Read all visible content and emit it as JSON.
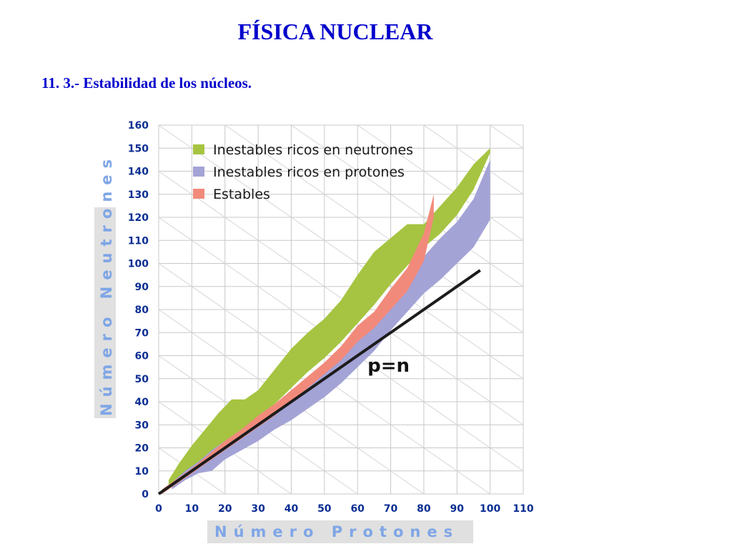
{
  "slide": {
    "title": "FÍSICA NUCLEAR",
    "subtitle": "11. 3.- Estabilidad de los núcleos."
  },
  "chart_data": {
    "type": "area",
    "xlabel": "Número Protones",
    "ylabel": "Número Neutrones",
    "xlim": [
      0,
      110
    ],
    "ylim": [
      0,
      160
    ],
    "xticks": [
      "0",
      "10",
      "20",
      "30",
      "40",
      "50",
      "60",
      "70",
      "80",
      "90",
      "100",
      "110"
    ],
    "yticks": [
      "0",
      "10",
      "20",
      "30",
      "40",
      "50",
      "60",
      "70",
      "80",
      "90",
      "100",
      "110",
      "120",
      "130",
      "140",
      "150",
      "160"
    ],
    "grid": true,
    "legend_position": "top-left",
    "colors": {
      "neutron_rich": "#a6c441",
      "proton_rich": "#a4a3d6",
      "stable": "#f28a7b",
      "line": "#1c1c1c",
      "axis_label_bg": "#e0e0e0",
      "tick_text": "#0a2e92"
    },
    "series": [
      {
        "name": "Inestables ricos en neutrones",
        "key": "neutron_rich",
        "x": [
          3,
          6,
          10,
          14,
          18,
          22,
          26,
          30,
          35,
          40,
          45,
          50,
          55,
          60,
          65,
          70,
          75,
          80,
          85,
          90,
          95,
          100
        ],
        "upper": [
          6,
          13,
          21,
          28,
          35,
          41,
          41,
          45,
          54,
          63,
          70,
          76,
          84,
          95,
          105,
          111,
          117,
          117,
          125,
          133,
          143,
          150
        ],
        "lower": [
          3,
          6,
          11,
          15,
          20,
          24,
          29,
          33,
          39,
          46,
          53,
          59,
          66,
          74,
          82,
          91,
          99,
          107,
          113,
          121,
          132,
          148
        ]
      },
      {
        "name": "Inestables ricos en protones",
        "key": "proton_rich",
        "x": [
          4,
          8,
          12,
          16,
          20,
          25,
          30,
          35,
          40,
          45,
          50,
          55,
          60,
          65,
          70,
          75,
          80,
          85,
          90,
          95,
          100
        ],
        "upper": [
          5,
          10,
          14,
          19,
          23,
          28,
          33,
          38,
          44,
          50,
          56,
          62,
          70,
          78,
          86,
          94,
          103,
          111,
          118,
          128,
          145
        ],
        "lower": [
          2,
          6,
          9,
          10,
          15,
          19,
          23,
          28,
          32,
          37,
          42,
          48,
          55,
          62,
          71,
          79,
          87,
          93,
          100,
          107,
          119
        ]
      },
      {
        "name": "Estables",
        "key": "stable",
        "x": [
          1,
          5,
          10,
          15,
          20,
          25,
          30,
          35,
          40,
          45,
          50,
          55,
          60,
          65,
          70,
          75,
          80,
          83
        ],
        "upper": [
          2,
          6,
          11,
          17,
          23,
          28,
          34,
          39,
          45,
          51,
          57,
          64,
          73,
          79,
          89,
          98,
          113,
          130
        ],
        "lower": [
          0,
          4,
          9,
          14,
          19,
          24,
          29,
          34,
          40,
          46,
          52,
          58,
          66,
          72,
          80,
          88,
          101,
          120
        ]
      }
    ],
    "reference_line": {
      "label": "p=n",
      "x": [
        0,
        97
      ],
      "y": [
        0,
        97
      ]
    }
  }
}
